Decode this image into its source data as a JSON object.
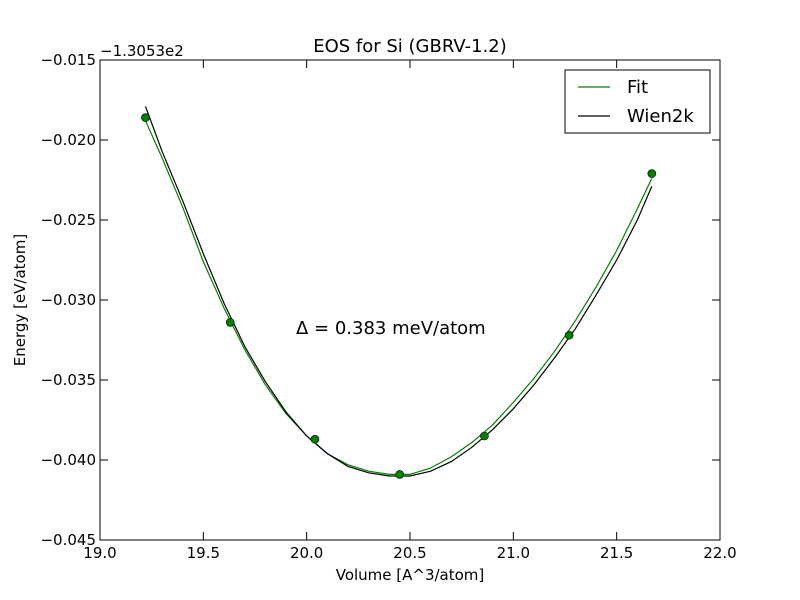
{
  "chart_data": {
    "type": "line",
    "title": "EOS for Si (GBRV-1.2)",
    "xlabel": "Volume [A^3/atom]",
    "ylabel": "Energy [eV/atom]",
    "offset_label": "−1.3053e2",
    "annotation": "Δ = 0.383 meV/atom",
    "xlim": [
      19.0,
      22.0
    ],
    "ylim": [
      -0.045,
      -0.015
    ],
    "x_ticks": [
      19.0,
      19.5,
      20.0,
      20.5,
      21.0,
      21.5,
      22.0
    ],
    "x_tick_labels": [
      "19.0",
      "19.5",
      "20.0",
      "20.5",
      "21.0",
      "21.5",
      "22.0"
    ],
    "y_ticks": [
      -0.015,
      -0.02,
      -0.025,
      -0.03,
      -0.035,
      -0.04,
      -0.045
    ],
    "y_tick_labels": [
      "−0.015",
      "−0.020",
      "−0.025",
      "−0.030",
      "−0.035",
      "−0.040",
      "−0.045"
    ],
    "legend_position": "top-right",
    "series": [
      {
        "name": "Fit",
        "color": "#008000",
        "style": "line",
        "x": [
          19.22,
          19.3,
          19.4,
          19.5,
          19.6,
          19.7,
          19.8,
          19.9,
          20.0,
          20.1,
          20.2,
          20.3,
          20.4,
          20.45,
          20.5,
          20.6,
          20.7,
          20.8,
          20.9,
          21.0,
          21.1,
          21.2,
          21.3,
          21.4,
          21.5,
          21.6,
          21.67
        ],
        "y": [
          -0.0188,
          -0.0211,
          -0.0242,
          -0.0276,
          -0.0305,
          -0.0331,
          -0.0353,
          -0.0371,
          -0.0385,
          -0.0396,
          -0.0403,
          -0.0407,
          -0.0409,
          -0.0409,
          -0.0409,
          -0.0405,
          -0.0398,
          -0.0389,
          -0.0378,
          -0.0364,
          -0.0349,
          -0.0332,
          -0.0313,
          -0.0292,
          -0.0269,
          -0.0243,
          -0.0224
        ]
      },
      {
        "name": "Wien2k",
        "color": "#000000",
        "style": "line",
        "x": [
          19.22,
          19.3,
          19.4,
          19.5,
          19.6,
          19.7,
          19.8,
          19.9,
          20.0,
          20.1,
          20.2,
          20.3,
          20.4,
          20.45,
          20.5,
          20.6,
          20.7,
          20.8,
          20.9,
          21.0,
          21.1,
          21.2,
          21.3,
          21.4,
          21.5,
          21.6,
          21.67
        ],
        "y": [
          -0.0179,
          -0.0207,
          -0.0238,
          -0.0271,
          -0.0302,
          -0.0329,
          -0.0351,
          -0.037,
          -0.0385,
          -0.0396,
          -0.0404,
          -0.0408,
          -0.041,
          -0.041,
          -0.041,
          -0.0407,
          -0.0401,
          -0.0392,
          -0.0381,
          -0.0368,
          -0.0353,
          -0.0336,
          -0.0318,
          -0.0297,
          -0.0275,
          -0.025,
          -0.0229
        ]
      },
      {
        "name": "",
        "color": "#008000",
        "style": "points",
        "x": [
          19.22,
          19.63,
          20.04,
          20.45,
          20.86,
          21.27,
          21.67
        ],
        "y": [
          -0.0186,
          -0.0314,
          -0.0387,
          -0.0409,
          -0.0385,
          -0.0322,
          -0.0221
        ]
      }
    ]
  }
}
